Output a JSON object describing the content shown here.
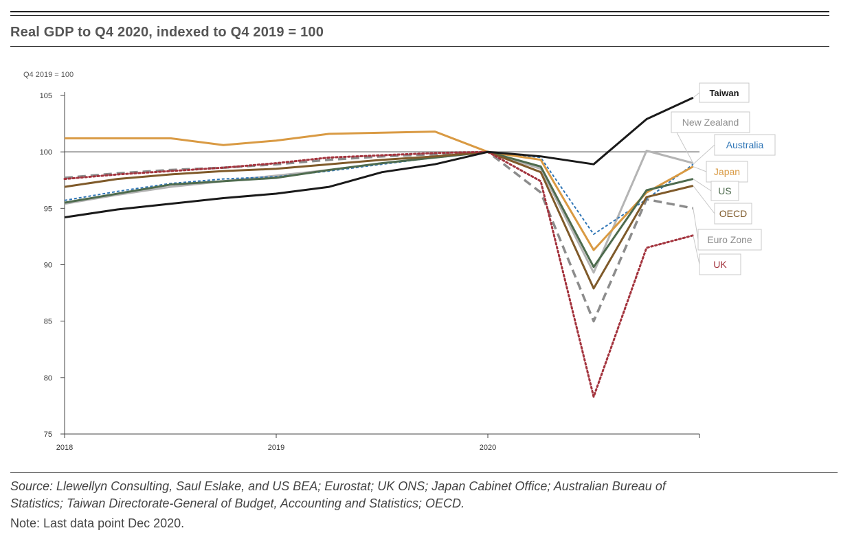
{
  "title": "Real GDP to Q4 2020, indexed to Q4 2019 = 100",
  "source_line1": "Source: Llewellyn Consulting, Saul Eslake, and US BEA; Eurostat; UK ONS; Japan Cabinet Office; Australian Bureau of",
  "source_line2": "Statistics; Taiwan Directorate-General of Budget, Accounting and Statistics; OECD.",
  "note": "Note: Last data point Dec 2020.",
  "chart_data": {
    "type": "line",
    "ylabel": "Q4 2019 = 100",
    "ylim": [
      75,
      105
    ],
    "yticks": [
      75,
      80,
      85,
      90,
      95,
      100,
      105
    ],
    "xlim": [
      2018,
      2021
    ],
    "xticks": [
      2018,
      2019,
      2020
    ],
    "xtick_labels": [
      "2018",
      "2019",
      "2020"
    ],
    "reference_line": 100,
    "series": [
      {
        "name": "Taiwan",
        "color": "#1a1a1a",
        "dash": "solid",
        "x": [
          2018.0,
          2018.25,
          2018.5,
          2018.75,
          2019.0,
          2019.25,
          2019.5,
          2019.75,
          2020.0,
          2020.25,
          2020.5,
          2020.75,
          2020.97
        ],
        "y": [
          94.2,
          94.9,
          95.4,
          95.9,
          96.3,
          96.9,
          98.2,
          98.9,
          100.0,
          99.6,
          98.9,
          102.9,
          104.8
        ]
      },
      {
        "name": "New Zealand",
        "color": "#b4b4b4",
        "dash": "solid",
        "x": [
          2018.0,
          2018.25,
          2018.5,
          2018.75,
          2019.0,
          2019.25,
          2019.5,
          2019.75,
          2020.0,
          2020.25,
          2020.5,
          2020.75,
          2020.97
        ],
        "y": [
          95.4,
          96.2,
          96.9,
          97.4,
          97.9,
          98.4,
          99.0,
          99.5,
          100.0,
          98.5,
          89.3,
          100.1,
          99.0
        ]
      },
      {
        "name": "Australia",
        "color": "#2e75b6",
        "dash": "dash-small",
        "x": [
          2018.0,
          2018.25,
          2018.5,
          2018.75,
          2019.0,
          2019.25,
          2019.5,
          2019.75,
          2020.0,
          2020.25,
          2020.5,
          2020.75,
          2020.97
        ],
        "y": [
          95.7,
          96.5,
          97.2,
          97.6,
          97.8,
          98.3,
          98.9,
          99.5,
          100.0,
          99.5,
          92.7,
          95.8,
          98.9
        ]
      },
      {
        "name": "Japan",
        "color": "#d99a43",
        "dash": "solid",
        "x": [
          2018.0,
          2018.25,
          2018.5,
          2018.75,
          2019.0,
          2019.25,
          2019.5,
          2019.75,
          2020.0,
          2020.25,
          2020.5,
          2020.75,
          2020.97
        ],
        "y": [
          101.2,
          101.2,
          101.2,
          100.6,
          101.0,
          101.6,
          101.7,
          101.8,
          100.0,
          99.3,
          91.3,
          96.4,
          98.7
        ]
      },
      {
        "name": "US",
        "color": "#4e6b4e",
        "dash": "solid",
        "x": [
          2018.0,
          2018.25,
          2018.5,
          2018.75,
          2019.0,
          2019.25,
          2019.5,
          2019.75,
          2020.0,
          2020.25,
          2020.5,
          2020.75,
          2020.97
        ],
        "y": [
          95.5,
          96.3,
          97.1,
          97.4,
          97.7,
          98.4,
          99.0,
          99.5,
          100.0,
          98.7,
          89.8,
          96.6,
          97.6
        ]
      },
      {
        "name": "OECD",
        "color": "#7f5a2a",
        "dash": "solid",
        "x": [
          2018.0,
          2018.25,
          2018.5,
          2018.75,
          2019.0,
          2019.25,
          2019.5,
          2019.75,
          2020.0,
          2020.25,
          2020.5,
          2020.75,
          2020.97
        ],
        "y": [
          96.9,
          97.6,
          98.0,
          98.3,
          98.5,
          98.9,
          99.3,
          99.6,
          100.0,
          98.2,
          87.9,
          96.0,
          97.0
        ]
      },
      {
        "name": "Euro Zone",
        "color": "#8c8c8c",
        "dash": "dash-long",
        "x": [
          2018.0,
          2018.25,
          2018.5,
          2018.75,
          2019.0,
          2019.25,
          2019.5,
          2019.75,
          2020.0,
          2020.25,
          2020.5,
          2020.75,
          2020.97
        ],
        "y": [
          97.7,
          98.1,
          98.4,
          98.6,
          98.9,
          99.3,
          99.6,
          99.8,
          100.0,
          96.4,
          85.0,
          95.8,
          95.0
        ]
      },
      {
        "name": "UK",
        "color": "#a3333d",
        "dash": "dotted",
        "x": [
          2018.0,
          2018.25,
          2018.5,
          2018.75,
          2019.0,
          2019.25,
          2019.5,
          2019.75,
          2020.0,
          2020.25,
          2020.5,
          2020.75,
          2020.97
        ],
        "y": [
          97.6,
          98.0,
          98.3,
          98.6,
          99.0,
          99.5,
          99.7,
          99.9,
          100.0,
          97.4,
          78.3,
          91.5,
          92.6
        ]
      }
    ]
  }
}
